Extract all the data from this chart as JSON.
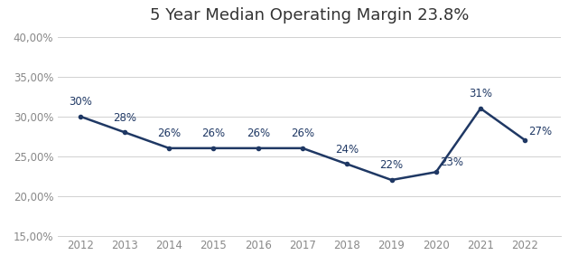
{
  "title": "5 Year Median Operating Margin 23.8%",
  "years": [
    2012,
    2013,
    2014,
    2015,
    2016,
    2017,
    2018,
    2019,
    2020,
    2021,
    2022
  ],
  "values": [
    0.3,
    0.28,
    0.26,
    0.26,
    0.26,
    0.26,
    0.24,
    0.22,
    0.23,
    0.31,
    0.27
  ],
  "labels": [
    "30%",
    "28%",
    "26%",
    "26%",
    "26%",
    "26%",
    "24%",
    "22%",
    "23%",
    "31%",
    "27%"
  ],
  "line_color": "#1F3864",
  "line_width": 1.8,
  "marker_size": 3,
  "ylim": [
    0.15,
    0.405
  ],
  "yticks": [
    0.15,
    0.2,
    0.25,
    0.3,
    0.35,
    0.4
  ],
  "title_fontsize": 13,
  "label_fontsize": 8.5,
  "tick_fontsize": 8.5,
  "background_color": "#ffffff",
  "grid_color": "#d0d0d0",
  "tick_color": "#888888"
}
